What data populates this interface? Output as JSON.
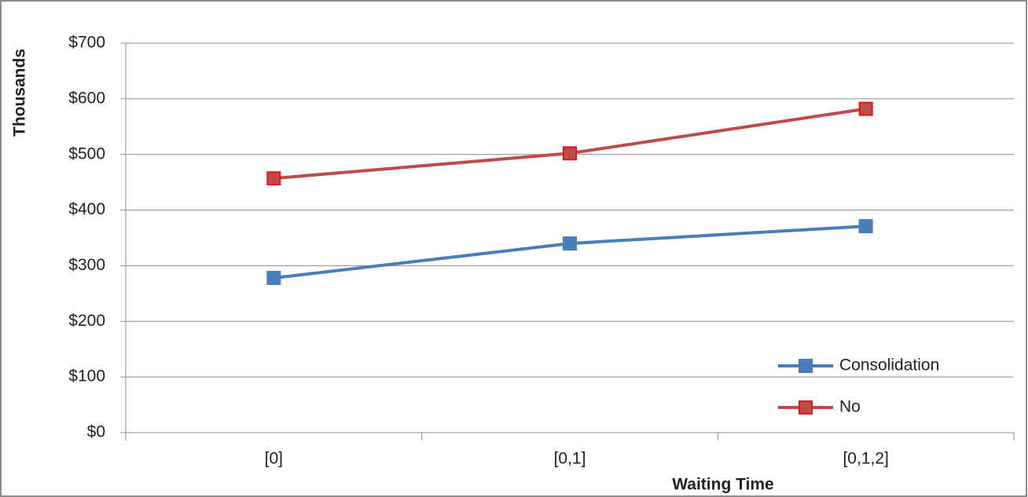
{
  "chart_data": {
    "type": "line",
    "y_label": "Thousands",
    "x_label": "Waiting Time",
    "categories": [
      "[0]",
      "[0,1]",
      "[0,1,2]"
    ],
    "series": [
      {
        "name": "Consolidation",
        "color": "#4a7ebb",
        "marker_edge": "#4a7ebb",
        "values": [
          278,
          340,
          371
        ]
      },
      {
        "name": "No",
        "color": "#be4b48",
        "marker_edge": "#e8141c",
        "values": [
          457,
          502,
          582
        ]
      }
    ],
    "ylim": [
      0,
      700
    ],
    "yticks": [
      {
        "value": 0,
        "label": "$0"
      },
      {
        "value": 100,
        "label": "$100"
      },
      {
        "value": 200,
        "label": "$200"
      },
      {
        "value": 300,
        "label": "$300"
      },
      {
        "value": 400,
        "label": "$400"
      },
      {
        "value": 500,
        "label": "$500"
      },
      {
        "value": 600,
        "label": "$600"
      },
      {
        "value": 700,
        "label": "$700"
      }
    ],
    "grid": true,
    "marker": "square",
    "legend": "lower right"
  }
}
